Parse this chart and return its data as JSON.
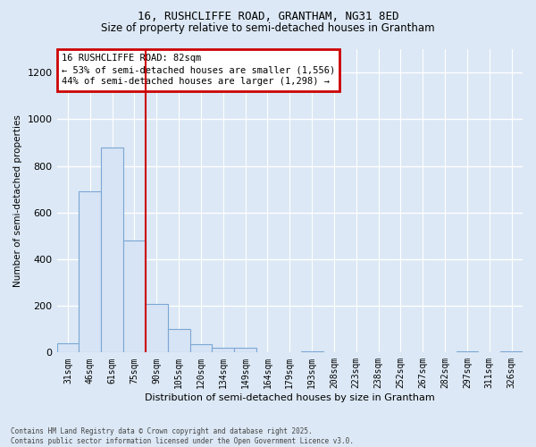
{
  "title1": "16, RUSHCLIFFE ROAD, GRANTHAM, NG31 8ED",
  "title2": "Size of property relative to semi-detached houses in Grantham",
  "xlabel": "Distribution of semi-detached houses by size in Grantham",
  "ylabel": "Number of semi-detached properties",
  "categories": [
    "31sqm",
    "46sqm",
    "61sqm",
    "75sqm",
    "90sqm",
    "105sqm",
    "120sqm",
    "134sqm",
    "149sqm",
    "164sqm",
    "179sqm",
    "193sqm",
    "208sqm",
    "223sqm",
    "238sqm",
    "252sqm",
    "267sqm",
    "282sqm",
    "297sqm",
    "311sqm",
    "326sqm"
  ],
  "values": [
    40,
    690,
    880,
    480,
    210,
    100,
    35,
    20,
    20,
    0,
    0,
    5,
    0,
    0,
    0,
    0,
    0,
    0,
    5,
    0,
    5
  ],
  "bar_color": "#d6e4f5",
  "bar_edge_color": "#7ba7d4",
  "vline_color": "#cc0000",
  "vline_x_index": 3,
  "annotation_title": "16 RUSHCLIFFE ROAD: 82sqm",
  "annotation_line1": "← 53% of semi-detached houses are smaller (1,556)",
  "annotation_line2": "44% of semi-detached houses are larger (1,298) →",
  "annotation_box_edgecolor": "#cc0000",
  "footer1": "Contains HM Land Registry data © Crown copyright and database right 2025.",
  "footer2": "Contains public sector information licensed under the Open Government Licence v3.0.",
  "ylim": [
    0,
    1300
  ],
  "yticks": [
    0,
    200,
    400,
    600,
    800,
    1000,
    1200
  ],
  "background_color": "#dce8f5",
  "plot_bg_color": "#dce8f5",
  "grid_color": "#ffffff"
}
